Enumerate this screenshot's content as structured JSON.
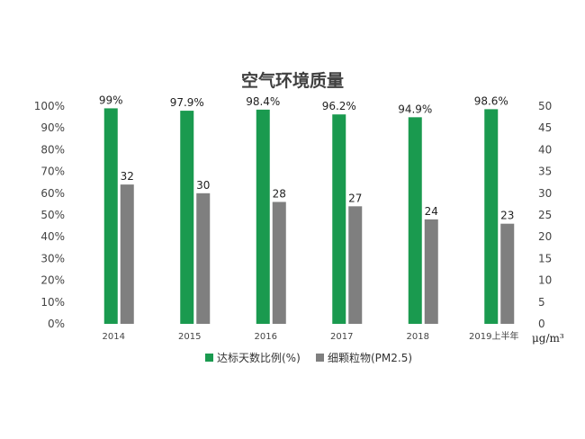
{
  "chart_data": {
    "type": "bar",
    "title": "空气环境质量",
    "categories": [
      "2014",
      "2015",
      "2016",
      "2017",
      "2018",
      "2019上半年"
    ],
    "series": [
      {
        "name": "达标天数比例(%)",
        "axis": "left",
        "color": "#1a9a4f",
        "values": [
          99,
          97.9,
          98.4,
          96.2,
          94.9,
          98.6
        ],
        "labels": [
          "99%",
          "97.9%",
          "98.4%",
          "96.2%",
          "94.9%",
          "98.6%"
        ]
      },
      {
        "name": "细颗粒物(PM2.5)",
        "axis": "right",
        "color": "#7f7f7f",
        "values": [
          32,
          30,
          28,
          27,
          24,
          23
        ],
        "labels": [
          "32",
          "30",
          "28",
          "27",
          "24",
          "23"
        ]
      }
    ],
    "y_left": {
      "ylim": [
        0,
        100
      ],
      "ticks": [
        0,
        10,
        20,
        30,
        40,
        50,
        60,
        70,
        80,
        90,
        100
      ],
      "tick_labels": [
        "0%",
        "10%",
        "20%",
        "30%",
        "40%",
        "50%",
        "60%",
        "70%",
        "80%",
        "90%",
        "100%"
      ]
    },
    "y_right": {
      "ylim": [
        0,
        50
      ],
      "ticks": [
        0,
        5,
        10,
        15,
        20,
        25,
        30,
        35,
        40,
        45,
        50
      ],
      "tick_labels": [
        "0",
        "5",
        "10",
        "15",
        "20",
        "25",
        "30",
        "35",
        "40",
        "45",
        "50"
      ],
      "unit": "μg/m³"
    },
    "grid": false,
    "legend": "bottom"
  }
}
